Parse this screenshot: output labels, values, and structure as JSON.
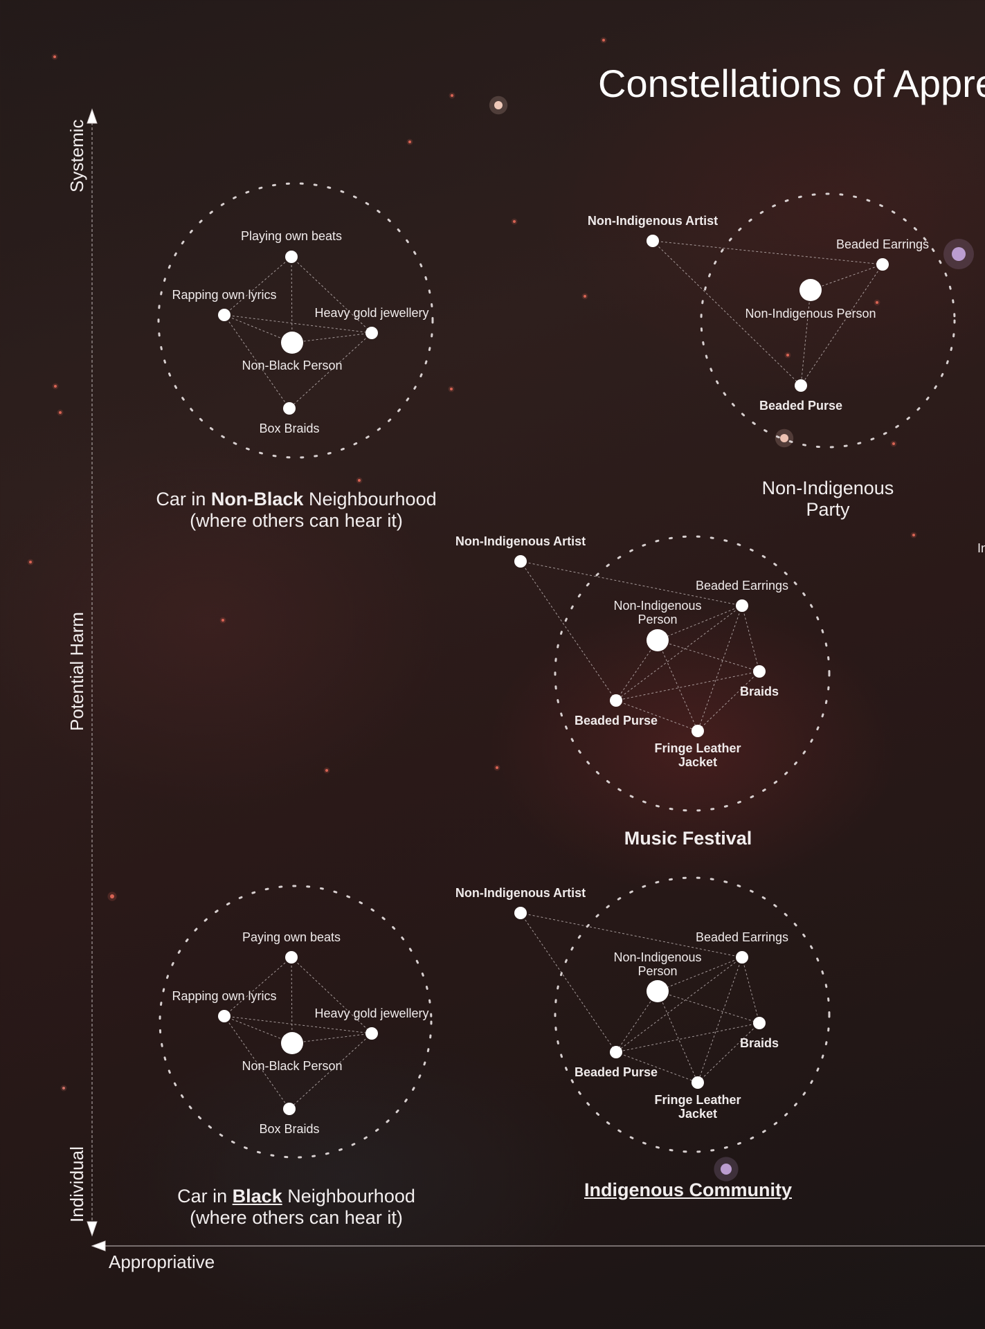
{
  "title": "Constellations of Appre",
  "axes": {
    "y_top": "Systemic",
    "y_middle": "Potential Harm",
    "y_bottom": "Individual",
    "x_left": "Appropriative"
  },
  "edge_fragment": "In",
  "groups": {
    "car_non_black": {
      "title_prefix": "Car in ",
      "title_emph": "Non-Black",
      "title_suffix": " Neighbourhood",
      "title_line2": "(where others can hear it)",
      "nodes": [
        {
          "label": "Playing own beats"
        },
        {
          "label": "Rapping own lyrics"
        },
        {
          "label": "Heavy gold jewellery"
        },
        {
          "label": "Non-Black Person"
        },
        {
          "label": "Box Braids"
        }
      ]
    },
    "non_indigenous_party": {
      "title_line1": "Non-Indigenous",
      "title_line2": "Party",
      "nodes": [
        {
          "label": "Non-Indigenous Artist"
        },
        {
          "label": "Beaded Earrings"
        },
        {
          "label": "Non-Indigenous Person"
        },
        {
          "label": "Beaded Purse"
        }
      ]
    },
    "music_festival": {
      "title": "Music Festival",
      "nodes": [
        {
          "label": "Non-Indigenous Artist"
        },
        {
          "label": "Beaded Earrings"
        },
        {
          "label": "Non-Indigenous Person"
        },
        {
          "label": "Braids"
        },
        {
          "label": "Beaded Purse"
        },
        {
          "label": "Fringe Leather Jacket"
        }
      ]
    },
    "car_black": {
      "title_prefix": "Car in ",
      "title_emph": "Black",
      "title_suffix": " Neighbourhood",
      "title_line2": "(where others can hear it)",
      "nodes": [
        {
          "label": "Paying own beats"
        },
        {
          "label": "Rapping own lyrics"
        },
        {
          "label": "Heavy gold jewellery"
        },
        {
          "label": "Non-Black Person"
        },
        {
          "label": "Box Braids"
        }
      ]
    },
    "indigenous_community": {
      "title": "Indigenous Community",
      "nodes": [
        {
          "label": "Non-Indigenous Artist"
        },
        {
          "label": "Beaded Earrings"
        },
        {
          "label": "Non-Indigenous Person"
        },
        {
          "label": "Braids"
        },
        {
          "label": "Beaded Purse"
        },
        {
          "label": "Fringe Leather Jacket"
        }
      ]
    }
  }
}
